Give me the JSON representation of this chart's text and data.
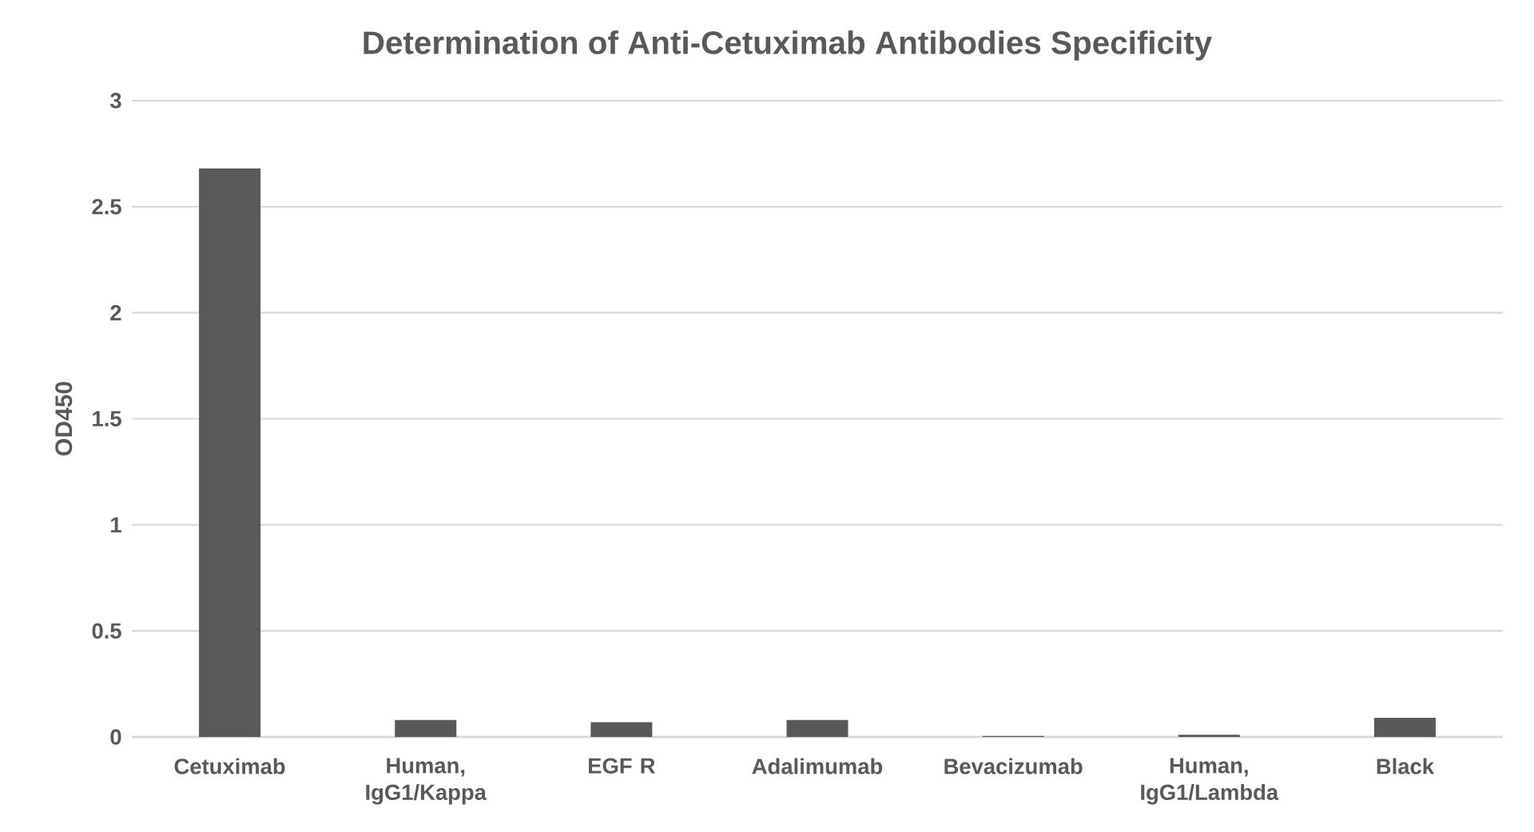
{
  "chart_data": {
    "type": "bar",
    "title": "Determination of Anti-Cetuximab Antibodies Specificity",
    "ylabel": "OD450",
    "categories": [
      "Cetuximab",
      "Human, IgG1/Kappa",
      "EGF R",
      "Adalimumab",
      "Bevacizumab",
      "Human, IgG1/Lambda",
      "Black"
    ],
    "values": [
      2.68,
      0.08,
      0.07,
      0.08,
      0.005,
      0.01,
      0.09
    ],
    "color": "#595959",
    "ylim": [
      0,
      3
    ],
    "yticks": [
      0,
      0.5,
      1,
      1.5,
      2,
      2.5,
      3
    ],
    "grid": "y"
  }
}
